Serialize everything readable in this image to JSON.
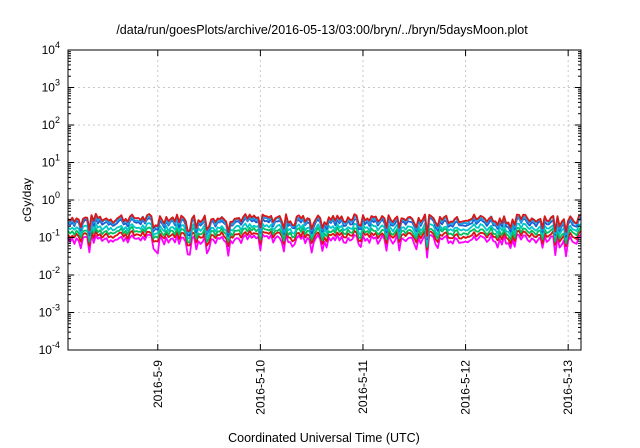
{
  "chart_data": {
    "type": "line",
    "title": "/data/run/goesPlots/archive/2016-05-13/03:00/bryn/../bryn/5daysMoon.plot",
    "xlabel": "Coordinated Universal Time (UTC)",
    "ylabel": "cGy/day",
    "yscale": "log",
    "ylim": [
      0.0001,
      10000
    ],
    "xlim": [
      "2016-05-08 03:00",
      "2016-05-13 03:00"
    ],
    "grid": true,
    "x_ticks": [
      "2016-5-9",
      "2016-5-10",
      "2016-5-11",
      "2016-5-12",
      "2016-5-13"
    ],
    "y_ticks": [
      {
        "value": 0.0001,
        "base": "10",
        "exp": "-4"
      },
      {
        "value": 0.001,
        "base": "10",
        "exp": "-3"
      },
      {
        "value": 0.01,
        "base": "10",
        "exp": "-2"
      },
      {
        "value": 0.1,
        "base": "10",
        "exp": "-1"
      },
      {
        "value": 1,
        "base": "10",
        "exp": "0"
      },
      {
        "value": 10,
        "base": "10",
        "exp": "1"
      },
      {
        "value": 100,
        "base": "10",
        "exp": "2"
      },
      {
        "value": 1000,
        "base": "10",
        "exp": "3"
      },
      {
        "value": 10000,
        "base": "10",
        "exp": "4"
      }
    ],
    "series": [
      {
        "color": "#ff00ff",
        "level": 0.095,
        "amplitude": 0.32,
        "dip_depth": 0.45
      },
      {
        "color": "#e01010",
        "level": 0.12,
        "amplitude": 0.3,
        "dip_depth": 0.35
      },
      {
        "color": "#00c060",
        "level": 0.15,
        "amplitude": 0.3,
        "dip_depth": 0.35
      },
      {
        "color": "#00c8c8",
        "level": 0.19,
        "amplitude": 0.3,
        "dip_depth": 0.35
      },
      {
        "color": "#1e5ad2",
        "level": 0.26,
        "amplitude": 0.3,
        "dip_depth": 0.4
      },
      {
        "color": "#1e9be6",
        "level": 0.3,
        "amplitude": 0.3,
        "dip_depth": 0.4
      },
      {
        "color": "#d81818",
        "level": 0.33,
        "amplitude": 0.28,
        "dip_depth": 0.4
      }
    ]
  }
}
